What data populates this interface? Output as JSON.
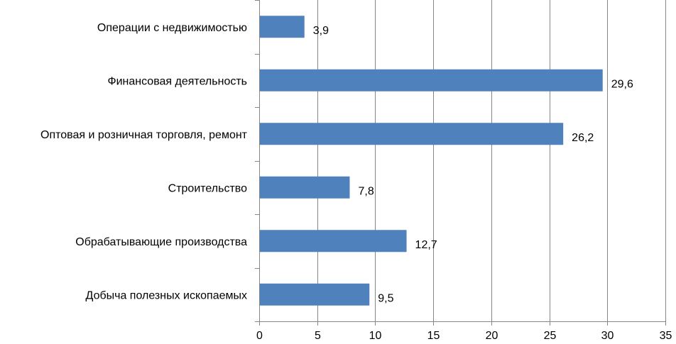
{
  "chart_data": {
    "type": "bar",
    "orientation": "horizontal",
    "categories": [
      "Операции с недвижимостью",
      "Финансовая деятельность",
      "Оптовая и розничная торговля, ремонт",
      "Строительство",
      "Обрабатывающие производства",
      "Добыча полезных ископаемых"
    ],
    "values": [
      3.9,
      29.6,
      26.2,
      7.8,
      12.7,
      9.5
    ],
    "value_labels": [
      "3,9",
      "29,6",
      "26,2",
      "7,8",
      "12,7",
      "9,5"
    ],
    "x_ticks": [
      "0",
      "5",
      "10",
      "15",
      "20",
      "25",
      "30",
      "35"
    ],
    "xlim": [
      0,
      35
    ],
    "grid": "vertical",
    "legend": "none",
    "bar_color": "#4F81BD",
    "title": "",
    "xlabel": "",
    "ylabel": ""
  }
}
